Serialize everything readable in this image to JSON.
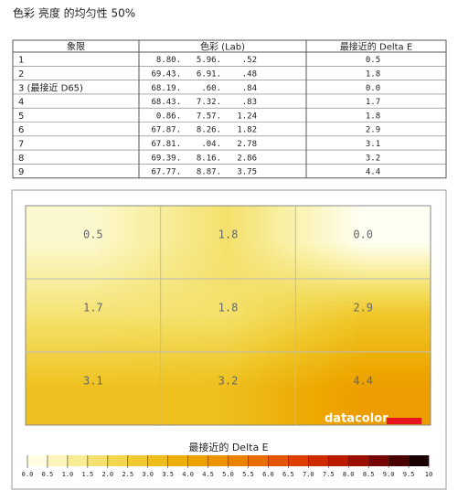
{
  "header": {
    "title": "色彩 亮度 的均匀性 50%"
  },
  "table": {
    "columns": [
      "象限",
      "色彩 (Lab)",
      "最接近的 Delta E"
    ],
    "rows": [
      [
        "1",
        "8.80.",
        "5.96.",
        ".52",
        "0.5"
      ],
      [
        "2",
        "69.43.",
        "6.91.",
        ".48",
        "1.8"
      ],
      [
        "3 (最接近 D65)",
        "68.19.",
        ".60.",
        ".84",
        "0.0"
      ],
      [
        "4",
        "68.43.",
        "7.32.",
        ".83",
        "1.7"
      ],
      [
        "5",
        "0.86.",
        "7.57.",
        "1.24",
        "1.8"
      ],
      [
        "6",
        "67.87.",
        "8.26.",
        "1.82",
        "2.9"
      ],
      [
        "7",
        "67.81.",
        ".04.",
        "2.78",
        "3.1"
      ],
      [
        "8",
        "69.39.",
        "8.16.",
        "2.86",
        "3.2"
      ],
      [
        "9",
        "67.77.",
        "8.87.",
        "3.75",
        "4.4"
      ]
    ]
  },
  "heatmap": {
    "logo": "datacolor",
    "legend": {
      "title": "最接近的 Delta E",
      "ticks": [
        "0.0",
        "0.5",
        "1.0",
        "1.5",
        "2.0",
        "2.5",
        "3.0",
        "3.5",
        "4.0",
        "4.5",
        "5.0",
        "5.5",
        "6.0",
        "6.5",
        "7.0",
        "7.5",
        "8.0",
        "8.5",
        "9.0",
        "9.5",
        "10"
      ],
      "colors": [
        "#fffff4",
        "#f9f1a8",
        "#f3dc5c",
        "#efc424",
        "#eda800",
        "#ec8c00",
        "#e86200",
        "#d83200",
        "#b01200",
        "#600000",
        "#000000"
      ]
    }
  }
}
